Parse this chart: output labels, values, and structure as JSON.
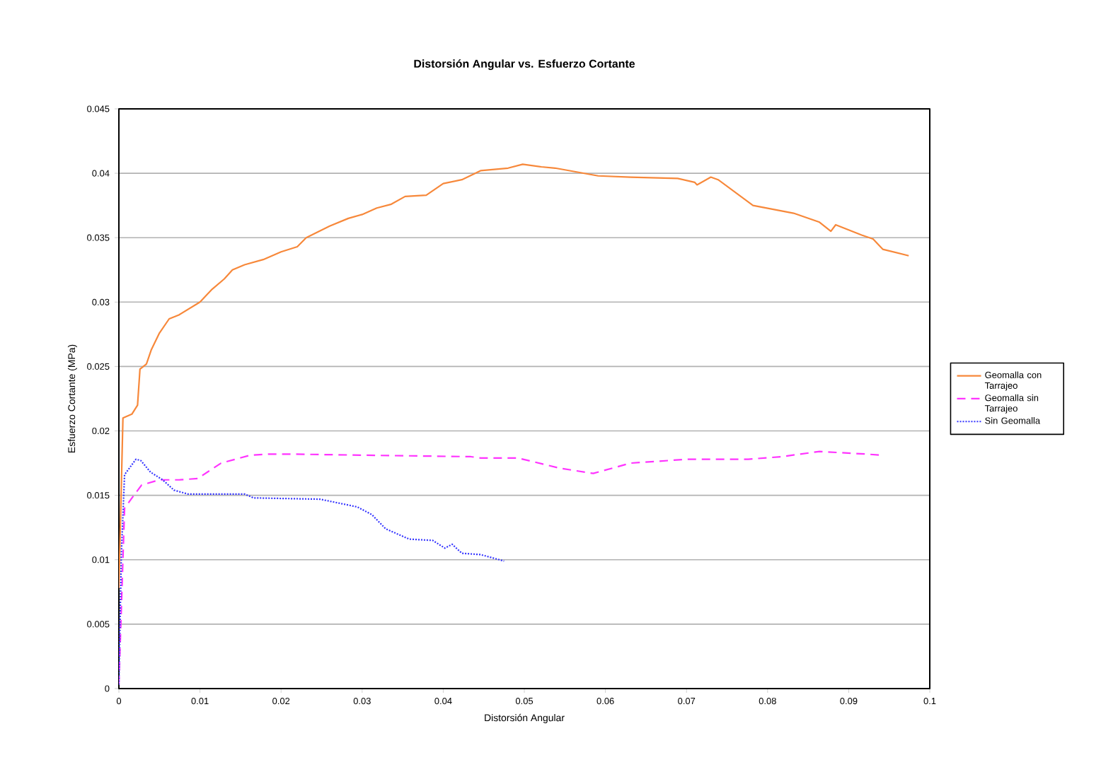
{
  "chart_data": {
    "type": "line",
    "title": "Distorsión Angular vs. Esfuerzo Cortante",
    "xlabel": "Distorsión Angular",
    "ylabel": "Esfuerzo Cortante (MPa)",
    "xlim": [
      0,
      0.1
    ],
    "ylim": [
      0,
      0.045
    ],
    "xticks": [
      0,
      0.01,
      0.02,
      0.03,
      0.04,
      0.05,
      0.06,
      0.07,
      0.08,
      0.09,
      0.1
    ],
    "yticks": [
      0,
      0.005,
      0.01,
      0.015,
      0.02,
      0.025,
      0.03,
      0.035,
      0.04,
      0.045
    ],
    "grid": "y",
    "legend": "right",
    "marker": "none",
    "series": [
      {
        "name": "Geomalla con Tarrajeo",
        "color": "#f7883a",
        "line_style": "solid",
        "x": [
          0,
          0.0005,
          0.0016,
          0.0023,
          0.0026,
          0.0034,
          0.004,
          0.005,
          0.0062,
          0.0074,
          0.01,
          0.0115,
          0.013,
          0.014,
          0.0155,
          0.0178,
          0.02,
          0.022,
          0.0231,
          0.026,
          0.0283,
          0.03,
          0.0318,
          0.0336,
          0.0353,
          0.0379,
          0.04,
          0.0423,
          0.0446,
          0.048,
          0.0498,
          0.0521,
          0.0538,
          0.0591,
          0.0631,
          0.0689,
          0.071,
          0.0713,
          0.073,
          0.0739,
          0.0782,
          0.0832,
          0.0864,
          0.0878,
          0.0884,
          0.0916,
          0.093,
          0.0942,
          0.0974
        ],
        "values": [
          0.0078,
          0.021,
          0.0213,
          0.022,
          0.0248,
          0.0252,
          0.0263,
          0.0276,
          0.0287,
          0.029,
          0.03,
          0.031,
          0.0318,
          0.0325,
          0.0329,
          0.0333,
          0.0339,
          0.0343,
          0.035,
          0.0359,
          0.0365,
          0.0368,
          0.0373,
          0.0376,
          0.0382,
          0.0383,
          0.0392,
          0.0395,
          0.0402,
          0.0404,
          0.0407,
          0.0405,
          0.0404,
          0.0398,
          0.0397,
          0.0396,
          0.0393,
          0.0391,
          0.0397,
          0.0395,
          0.0375,
          0.0369,
          0.0362,
          0.0355,
          0.036,
          0.0352,
          0.0349,
          0.0341,
          0.0336
        ]
      },
      {
        "name": "Geomalla sin Tarrajeo",
        "color": "#ff33ff",
        "line_style": "dashed",
        "x": [
          0,
          0.0007,
          0.0015,
          0.0028,
          0.005,
          0.0074,
          0.0097,
          0.0126,
          0.0161,
          0.0184,
          0.0213,
          0.0318,
          0.0434,
          0.0446,
          0.0492,
          0.0544,
          0.0585,
          0.0631,
          0.0701,
          0.0776,
          0.0817,
          0.0864,
          0.0922,
          0.0942
        ],
        "values": [
          0.0003,
          0.014,
          0.0147,
          0.0158,
          0.0162,
          0.0162,
          0.0163,
          0.0175,
          0.0181,
          0.0182,
          0.0182,
          0.0181,
          0.018,
          0.0179,
          0.0179,
          0.0171,
          0.0167,
          0.0175,
          0.0178,
          0.0178,
          0.018,
          0.0184,
          0.0182,
          0.0181
        ]
      },
      {
        "name": "Sin Geomalla",
        "color": "#3333ff",
        "line_style": "dotted",
        "x": [
          0,
          0.0003,
          0.0007,
          0.0021,
          0.0027,
          0.0039,
          0.0054,
          0.0068,
          0.0085,
          0.0155,
          0.0166,
          0.0248,
          0.0294,
          0.0312,
          0.0329,
          0.0358,
          0.0387,
          0.0402,
          0.0411,
          0.0423,
          0.0446,
          0.0475
        ],
        "values": [
          0.0003,
          0.0104,
          0.0166,
          0.0178,
          0.0177,
          0.0168,
          0.0162,
          0.0154,
          0.0151,
          0.0151,
          0.0148,
          0.0147,
          0.0141,
          0.0135,
          0.0124,
          0.0116,
          0.0115,
          0.0109,
          0.0112,
          0.0105,
          0.0104,
          0.0099
        ]
      }
    ]
  }
}
